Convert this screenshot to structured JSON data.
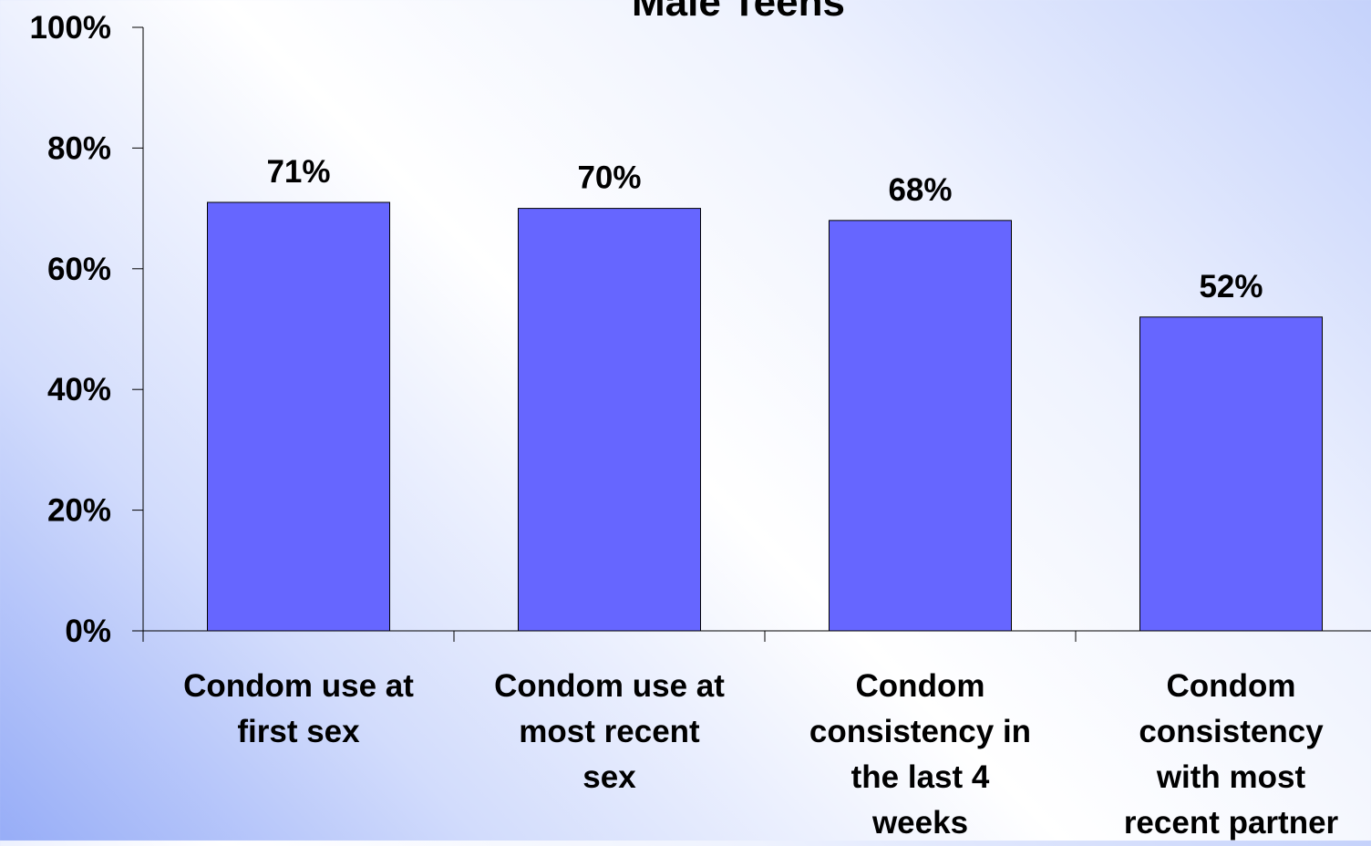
{
  "chart_data": {
    "type": "bar",
    "title": "Male Teens",
    "categories": [
      "Condom use at\nfirst sex",
      "Condom use at\nmost recent\nsex",
      "Condom\nconsistency in\nthe last 4\nweeks",
      "Condom\nconsistency\nwith most\nrecent partner"
    ],
    "values": [
      71,
      70,
      68,
      52
    ],
    "data_labels": [
      "71%",
      "70%",
      "68%",
      "52%"
    ],
    "ylim": [
      0,
      100
    ],
    "yticks": [
      0,
      20,
      40,
      60,
      80,
      100
    ],
    "ytick_labels": [
      "0%",
      "20%",
      "40%",
      "60%",
      "80%",
      "100%"
    ],
    "xlabel": "",
    "ylabel": "",
    "bar_color": "#6666ff",
    "grid": false,
    "legend": "none"
  }
}
